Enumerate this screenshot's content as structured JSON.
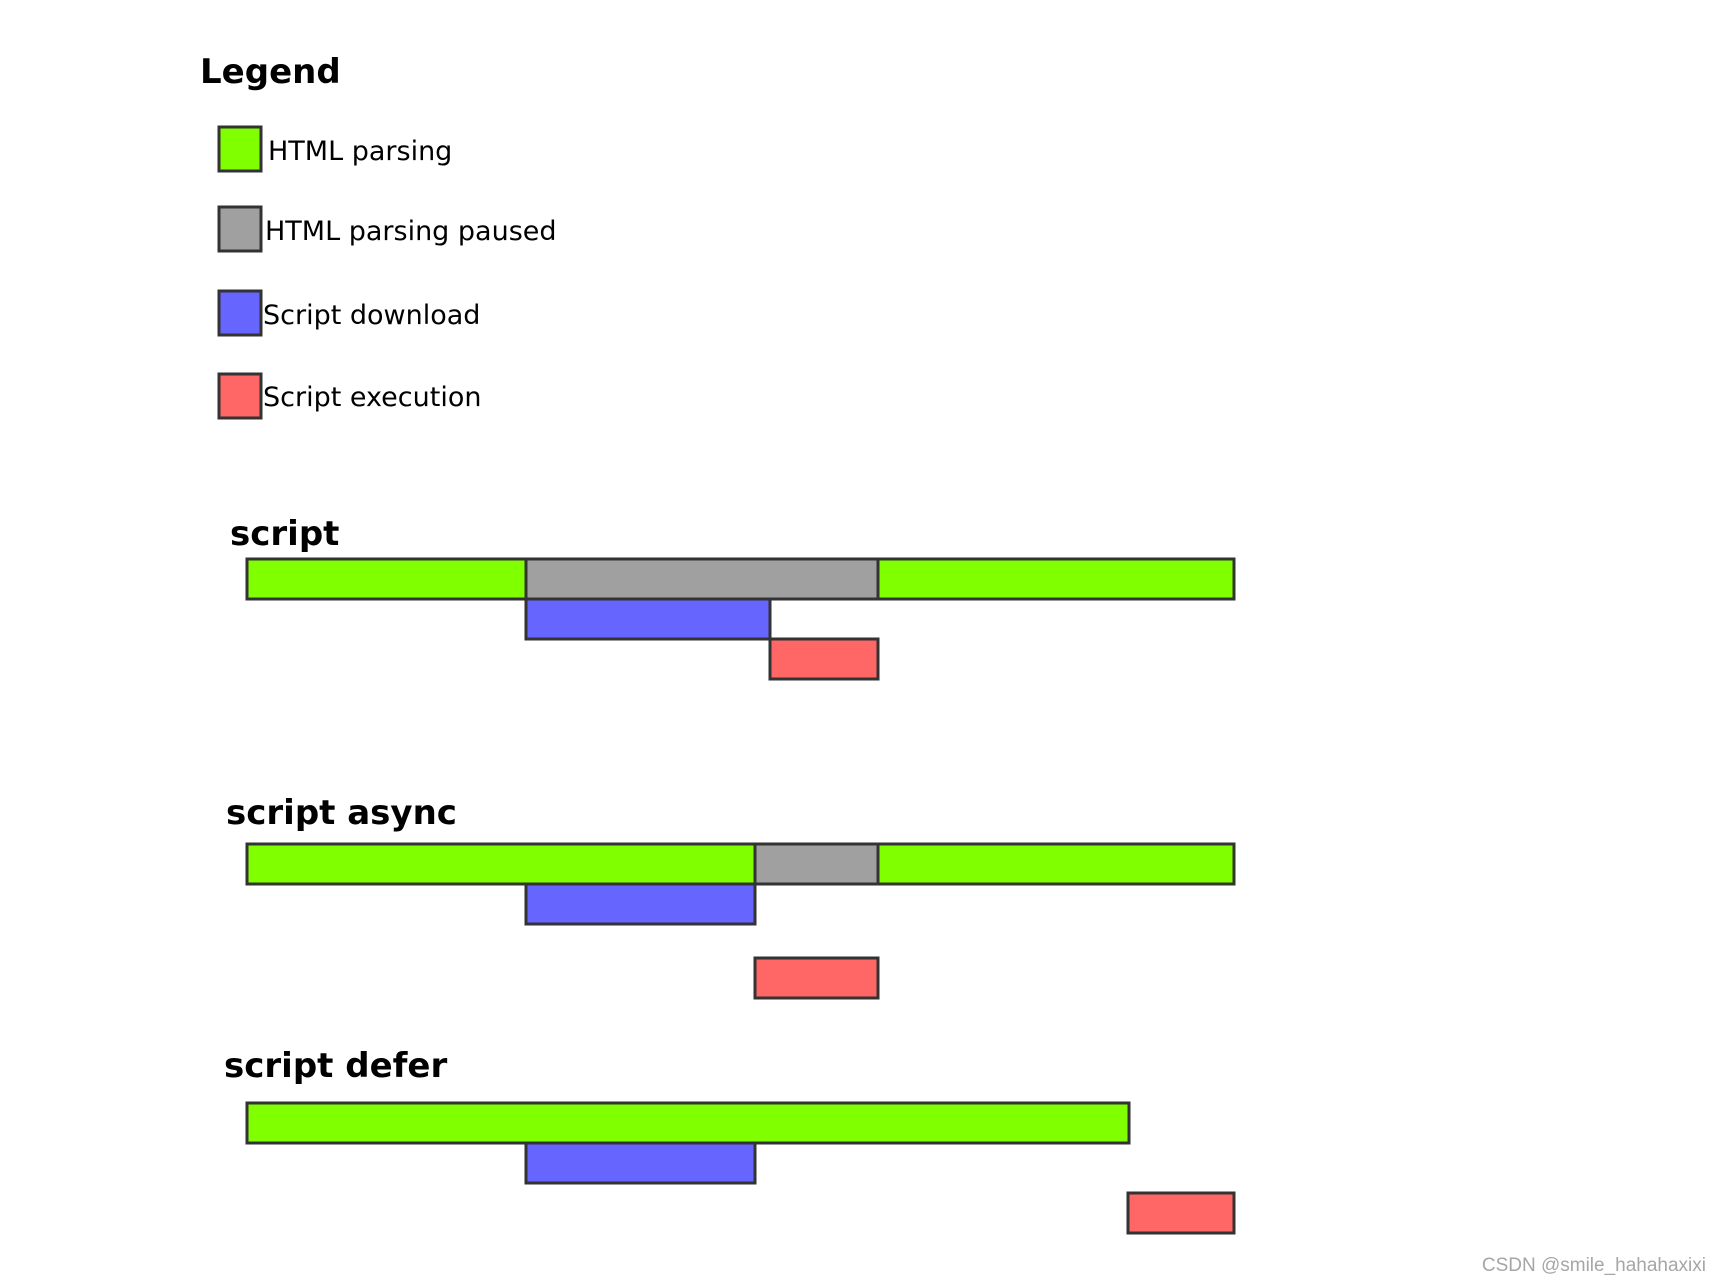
{
  "legend": {
    "title": "Legend",
    "items": [
      {
        "label": "HTML parsing",
        "color": "#80ff00"
      },
      {
        "label": "HTML parsing paused",
        "color": "#a0a0a0"
      },
      {
        "label": "Script download",
        "color": "#6666ff"
      },
      {
        "label": "Script execution",
        "color": "#ff6666"
      }
    ]
  },
  "sections": [
    {
      "title": "script"
    },
    {
      "title": "script async"
    },
    {
      "title": "script defer"
    }
  ],
  "colors": {
    "parsing": "#80ff00",
    "paused": "#a0a0a0",
    "download": "#6666ff",
    "execution": "#ff6666",
    "border": "#333333"
  },
  "watermark": "CSDN @smile_hahahaxixi"
}
